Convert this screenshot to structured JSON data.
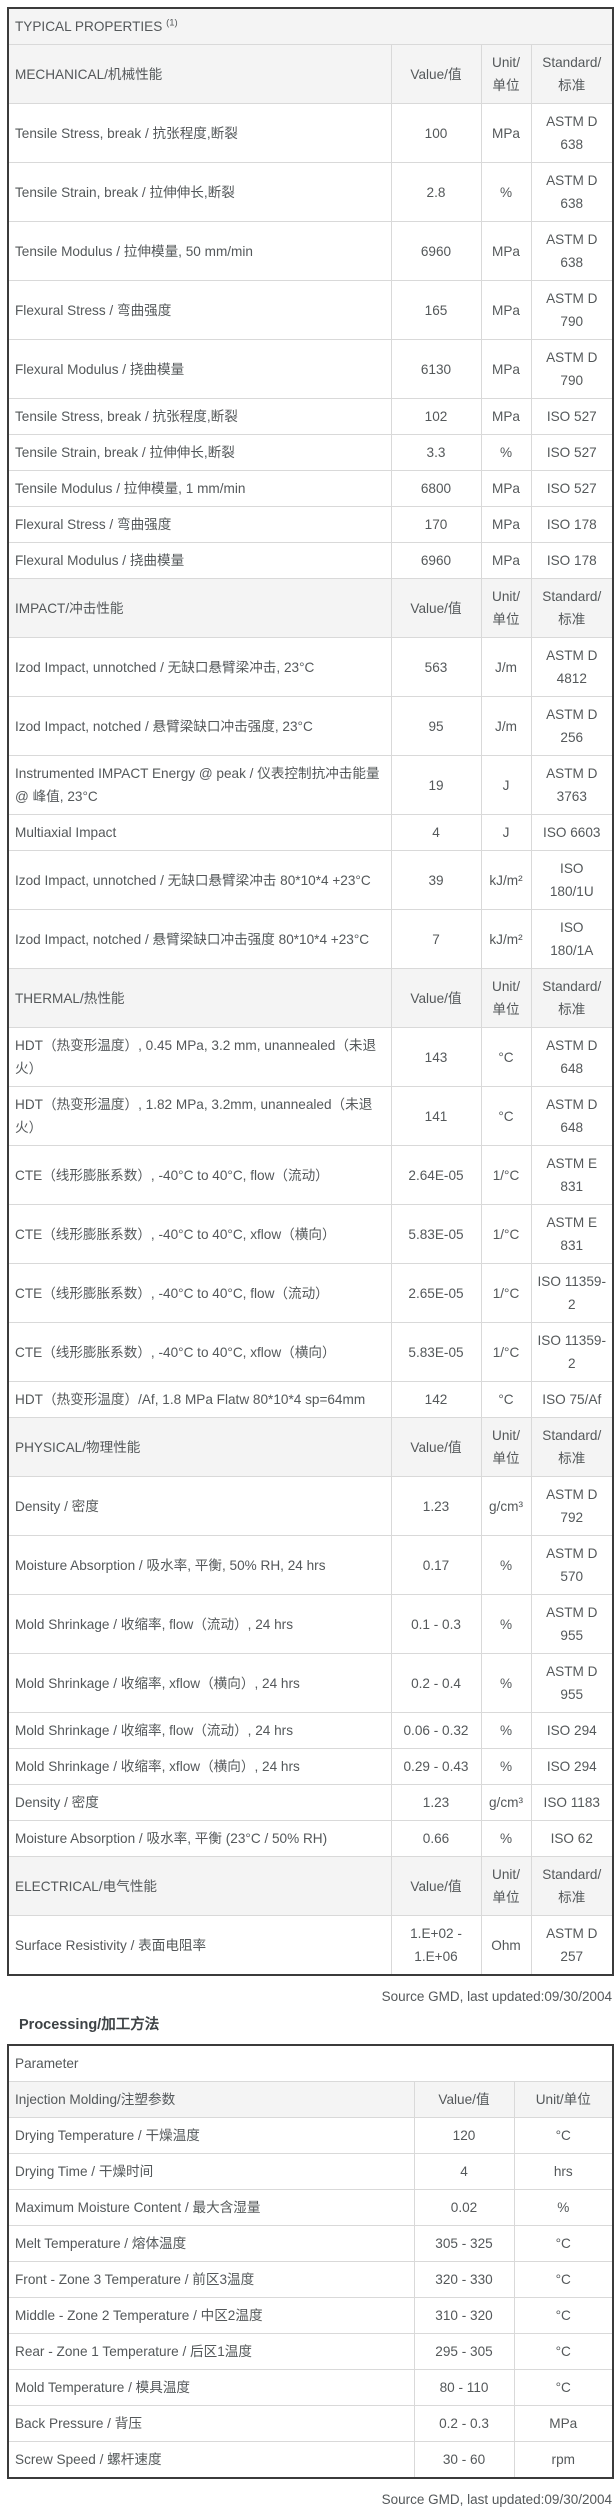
{
  "typical_properties": {
    "title": "TYPICAL PROPERTIES",
    "title_superscript": "(1)",
    "col_headers": {
      "value": "Value/值",
      "unit": "Unit/\n单位",
      "standard": "Standard/\n标准"
    },
    "source_note": "Source GMD, last updated:09/30/2004",
    "sections": [
      {
        "name": "MECHANICAL/机械性能",
        "rows": [
          {
            "property": "Tensile Stress, break / 抗张程度,断裂",
            "value": "100",
            "unit": "MPa",
            "standard": "ASTM D\n638"
          },
          {
            "property": "Tensile Strain, break / 拉伸伸长,断裂",
            "value": "2.8",
            "unit": "%",
            "standard": "ASTM D\n638"
          },
          {
            "property": "Tensile Modulus / 拉伸模量, 50 mm/min",
            "value": "6960",
            "unit": "MPa",
            "standard": "ASTM D\n638"
          },
          {
            "property": "Flexural Stress / 弯曲强度",
            "value": "165",
            "unit": "MPa",
            "standard": "ASTM D\n790"
          },
          {
            "property": "Flexural Modulus / 挠曲模量",
            "value": "6130",
            "unit": "MPa",
            "standard": "ASTM D\n790"
          },
          {
            "property": "Tensile Stress, break / 抗张程度,断裂",
            "value": "102",
            "unit": "MPa",
            "standard": "ISO 527"
          },
          {
            "property": "Tensile Strain, break / 拉伸伸长,断裂",
            "value": "3.3",
            "unit": "%",
            "standard": "ISO 527"
          },
          {
            "property": "Tensile Modulus / 拉伸模量, 1 mm/min",
            "value": "6800",
            "unit": "MPa",
            "standard": "ISO 527"
          },
          {
            "property": "Flexural Stress / 弯曲强度",
            "value": "170",
            "unit": "MPa",
            "standard": "ISO 178"
          },
          {
            "property": "Flexural Modulus / 挠曲模量",
            "value": "6960",
            "unit": "MPa",
            "standard": "ISO 178"
          }
        ]
      },
      {
        "name": "IMPACT/冲击性能",
        "rows": [
          {
            "property": "Izod Impact, unnotched / 无缺口悬臂梁冲击, 23°C",
            "value": "563",
            "unit": "J/m",
            "standard": "ASTM D\n4812"
          },
          {
            "property": "Izod Impact, notched / 悬臂梁缺口冲击强度, 23°C",
            "value": "95",
            "unit": "J/m",
            "standard": "ASTM D\n256"
          },
          {
            "property": "Instrumented IMPACT Energy @ peak / 仪表控制抗冲击能量 @ 峰值, 23°C",
            "value": "19",
            "unit": "J",
            "standard": "ASTM D\n3763"
          },
          {
            "property": "Multiaxial Impact",
            "value": "4",
            "unit": "J",
            "standard": "ISO 6603"
          },
          {
            "property": "Izod Impact, unnotched / 无缺口悬臂梁冲击 80*10*4 +23°C",
            "value": "39",
            "unit": "kJ/m²",
            "standard": "ISO 180/1U"
          },
          {
            "property": "Izod Impact, notched / 悬臂梁缺口冲击强度 80*10*4 +23°C",
            "value": "7",
            "unit": "kJ/m²",
            "standard": "ISO 180/1A"
          }
        ]
      },
      {
        "name": "THERMAL/热性能",
        "rows": [
          {
            "property": "HDT（热变形温度）, 0.45 MPa, 3.2 mm, unannealed（未退火）",
            "value": "143",
            "unit": "°C",
            "standard": "ASTM D\n648"
          },
          {
            "property": "HDT（热变形温度）, 1.82 MPa, 3.2mm, unannealed（未退火）",
            "value": "141",
            "unit": "°C",
            "standard": "ASTM D\n648"
          },
          {
            "property": "CTE（线形膨胀系数）, -40°C to 40°C, flow（流动）",
            "value": "2.64E-05",
            "unit": "1/°C",
            "standard": "ASTM E 831"
          },
          {
            "property": "CTE（线形膨胀系数）, -40°C to 40°C, xflow（横向）",
            "value": "5.83E-05",
            "unit": "1/°C",
            "standard": "ASTM E 831"
          },
          {
            "property": "CTE（线形膨胀系数）, -40°C to 40°C, flow（流动）",
            "value": "2.65E-05",
            "unit": "1/°C",
            "standard": "ISO 11359-2"
          },
          {
            "property": "CTE（线形膨胀系数）, -40°C to 40°C, xflow（横向）",
            "value": "5.83E-05",
            "unit": "1/°C",
            "standard": "ISO 11359-2"
          },
          {
            "property": "HDT（热变形温度）/Af, 1.8 MPa Flatw 80*10*4 sp=64mm",
            "value": "142",
            "unit": "°C",
            "standard": "ISO 75/Af"
          }
        ]
      },
      {
        "name": "PHYSICAL/物理性能",
        "rows": [
          {
            "property": "Density / 密度",
            "value": "1.23",
            "unit": "g/cm³",
            "standard": "ASTM D\n792"
          },
          {
            "property": "Moisture Absorption / 吸水率, 平衡, 50% RH, 24 hrs",
            "value": "0.17",
            "unit": "%",
            "standard": "ASTM D\n570"
          },
          {
            "property": "Mold Shrinkage / 收缩率, flow（流动）, 24 hrs",
            "value": "0.1 - 0.3",
            "unit": "%",
            "standard": "ASTM D\n955"
          },
          {
            "property": "Mold Shrinkage / 收缩率, xflow（横向）, 24 hrs",
            "value": "0.2 - 0.4",
            "unit": "%",
            "standard": "ASTM D\n955"
          },
          {
            "property": "Mold Shrinkage / 收缩率, flow（流动）, 24 hrs",
            "value": "0.06 - 0.32",
            "unit": "%",
            "standard": "ISO 294"
          },
          {
            "property": "Mold Shrinkage / 收缩率, xflow（横向）, 24 hrs",
            "value": "0.29 - 0.43",
            "unit": "%",
            "standard": "ISO 294"
          },
          {
            "property": "Density / 密度",
            "value": "1.23",
            "unit": "g/cm³",
            "standard": "ISO 1183"
          },
          {
            "property": "Moisture Absorption / 吸水率, 平衡 (23°C / 50% RH)",
            "value": "0.66",
            "unit": "%",
            "standard": "ISO 62"
          }
        ]
      },
      {
        "name": "ELECTRICAL/电气性能",
        "rows": [
          {
            "property": "Surface Resistivity / 表面电阻率",
            "value": "1.E+02 -\n1.E+06",
            "unit": "Ohm",
            "standard": "ASTM D\n257"
          }
        ]
      }
    ]
  },
  "processing": {
    "heading": "Processing/加工方法",
    "param_header": "Parameter",
    "table_header": {
      "name": "Injection Molding/注塑参数",
      "value": "Value/值",
      "unit": "Unit/单位"
    },
    "source_note": "Source GMD, last updated:09/30/2004",
    "rows": [
      {
        "parameter": "Drying Temperature / 干燥温度",
        "value": "120",
        "unit": "°C"
      },
      {
        "parameter": "Drying Time / 干燥时间",
        "value": "4",
        "unit": "hrs"
      },
      {
        "parameter": "Maximum Moisture Content / 最大含湿量",
        "value": "0.02",
        "unit": "%"
      },
      {
        "parameter": "Melt Temperature / 熔体温度",
        "value": "305 - 325",
        "unit": "°C"
      },
      {
        "parameter": "Front - Zone 3 Temperature / 前区3温度",
        "value": "320 - 330",
        "unit": "°C"
      },
      {
        "parameter": "Middle - Zone 2 Temperature / 中区2温度",
        "value": "310 - 320",
        "unit": "°C"
      },
      {
        "parameter": "Rear - Zone 1 Temperature / 后区1温度",
        "value": "295 - 305",
        "unit": "°C"
      },
      {
        "parameter": "Mold Temperature / 模具温度",
        "value": "80 - 110",
        "unit": "°C"
      },
      {
        "parameter": "Back Pressure / 背压",
        "value": "0.2 - 0.3",
        "unit": "MPa"
      },
      {
        "parameter": "Screw Speed / 螺杆速度",
        "value": "30 - 60",
        "unit": "rpm"
      }
    ]
  },
  "colors": {
    "text": "#54585a",
    "section_header_bg": "#f4f4f4",
    "inner_border": "#d9d9d9",
    "outer_border": "#3b3b3b"
  }
}
